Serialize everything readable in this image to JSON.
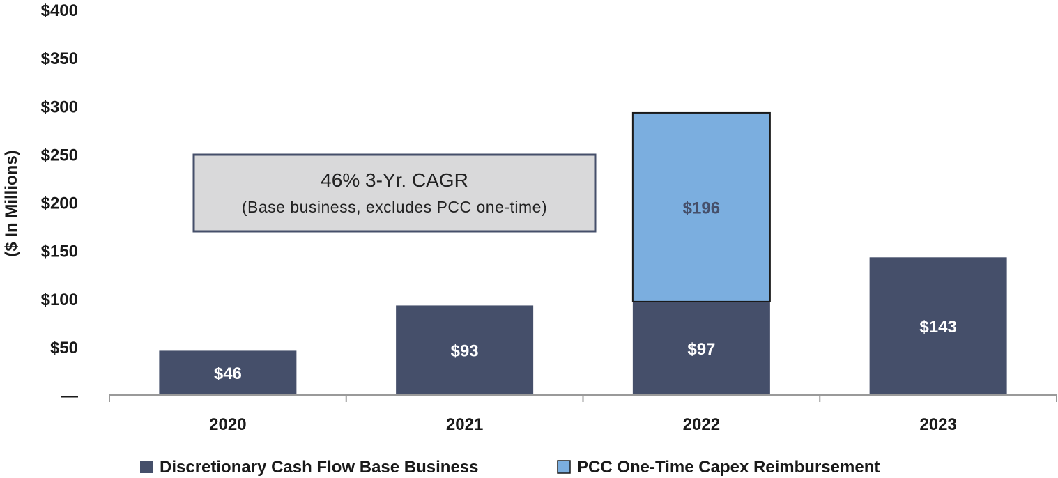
{
  "chart_data": {
    "type": "bar",
    "stacked": true,
    "categories": [
      "2020",
      "2021",
      "2022",
      "2023"
    ],
    "series": [
      {
        "name": "Discretionary Cash Flow Base Business",
        "values": [
          46,
          93,
          97,
          143
        ],
        "labels": [
          "$46",
          "$93",
          "$97",
          "$143"
        ],
        "color": "#454f6a",
        "label_color": "#ffffff"
      },
      {
        "name": "PCC One-Time Capex Reimbursement",
        "values": [
          0,
          0,
          196,
          0
        ],
        "labels": [
          "",
          "",
          "$196",
          ""
        ],
        "color": "#7baedf",
        "label_color": "#454f6a"
      }
    ],
    "ylabel": "($ In Millions)",
    "ylim": [
      0,
      400
    ],
    "yticks": [
      0,
      50,
      100,
      150,
      200,
      250,
      300,
      350,
      400
    ],
    "ytick_labels": [
      "—",
      "$50",
      "$100",
      "$150",
      "$200",
      "$250",
      "$300",
      "$350",
      "$400"
    ],
    "grid": false,
    "legend_position": "bottom",
    "annotation": {
      "line1": "46% 3-Yr. CAGR",
      "line2": "(Base business, excludes PCC one-time)"
    }
  }
}
